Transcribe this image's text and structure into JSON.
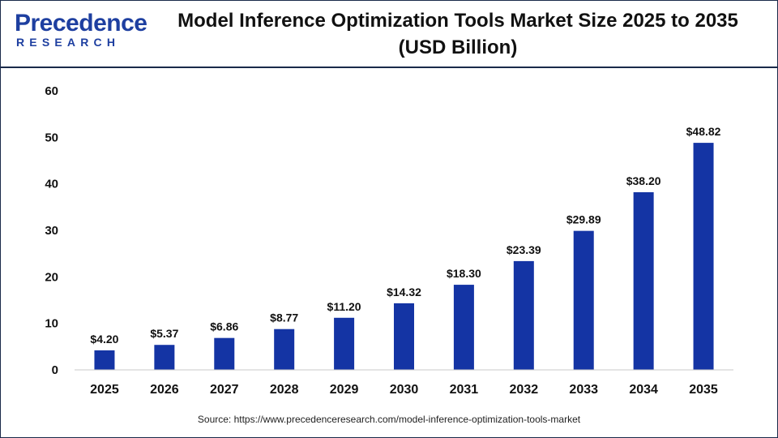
{
  "brand": {
    "logo_word": "Precedence",
    "logo_sub": "RESEARCH",
    "color": "#1e3fa0"
  },
  "header": {
    "title_line1": "Model Inference Optimization Tools Market Size 2025 to 2035",
    "title_line2": "(USD Billion)"
  },
  "chart_data": {
    "type": "bar",
    "title": "Model Inference Optimization Tools Market Size 2025 to 2035 (USD Billion)",
    "xlabel": "",
    "ylabel": "",
    "categories": [
      "2025",
      "2026",
      "2027",
      "2028",
      "2029",
      "2030",
      "2031",
      "2032",
      "2033",
      "2034",
      "2035"
    ],
    "values": [
      4.2,
      5.37,
      6.86,
      8.77,
      11.2,
      14.32,
      18.3,
      23.39,
      29.89,
      38.2,
      48.82
    ],
    "value_labels": [
      "$4.20",
      "$5.37",
      "$6.86",
      "$8.77",
      "$11.20",
      "$14.32",
      "$18.30",
      "$23.39",
      "$29.89",
      "$38.20",
      "$48.82"
    ],
    "ylim": [
      0,
      60
    ],
    "yticks": [
      0,
      10,
      20,
      30,
      40,
      50,
      60
    ],
    "grid": false,
    "bar_color": "#1434a4"
  },
  "footer": {
    "source": "Source: https://www.precedenceresearch.com/model-inference-optimization-tools-market"
  }
}
